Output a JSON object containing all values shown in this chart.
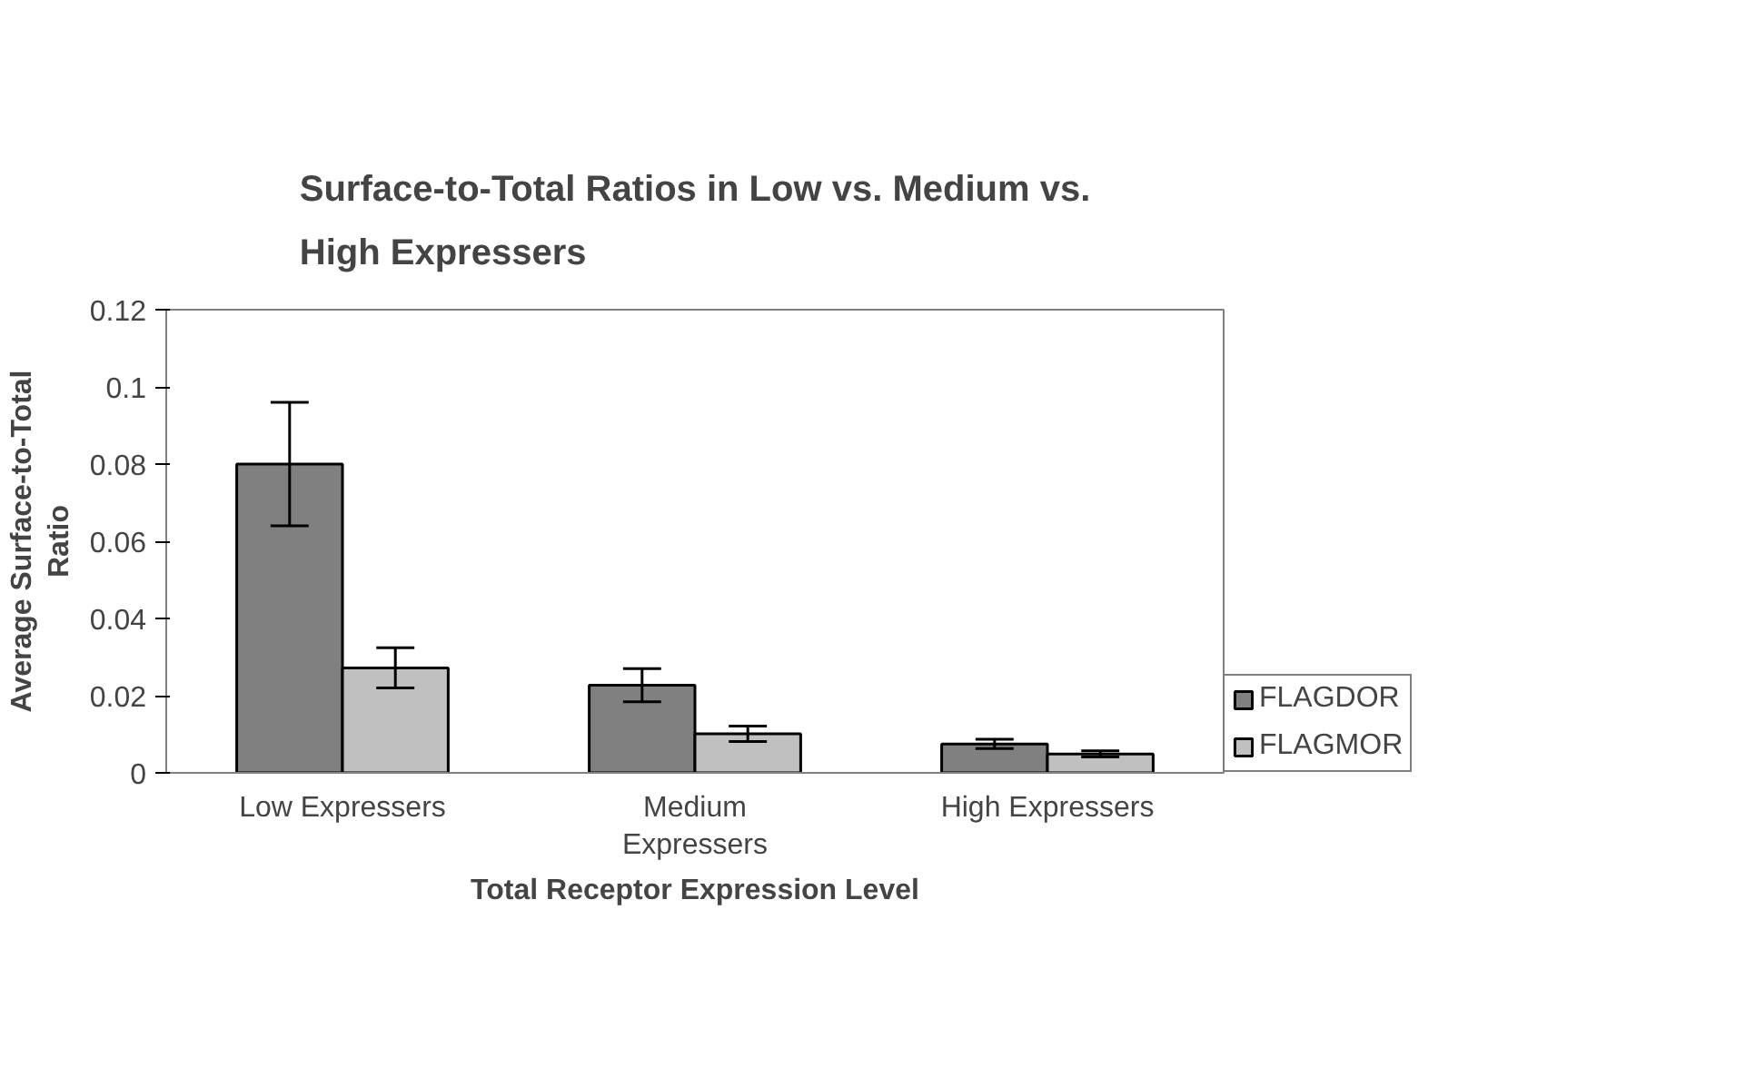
{
  "chart_data": {
    "type": "bar",
    "title": "Surface-to-Total Ratios in Low vs. Medium vs. High Expressers",
    "xlabel": "Total Receptor Expression Level",
    "ylabel": "Average Surface-to-Total Ratio",
    "categories": [
      "Low Expressers",
      "Medium Expressers",
      "High Expressers"
    ],
    "series": [
      {
        "name": "FLAGDOR",
        "color": "#808080",
        "values": [
          0.08,
          0.0227,
          0.0075
        ],
        "errors": [
          0.016,
          0.0043,
          0.0012
        ]
      },
      {
        "name": "FLAGMOR",
        "color": "#c0c0c0",
        "values": [
          0.0272,
          0.0101,
          0.0049
        ],
        "errors": [
          0.0052,
          0.002,
          0.0008
        ]
      }
    ],
    "ylim": [
      0,
      0.12
    ],
    "yticks": [
      0,
      0.02,
      0.04,
      0.06,
      0.08,
      0.1,
      0.12
    ],
    "grid": false,
    "legend": "right"
  }
}
